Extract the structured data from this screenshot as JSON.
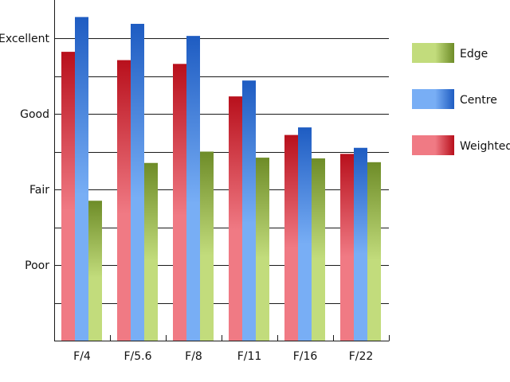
{
  "chart_data": {
    "type": "bar",
    "title": "",
    "xlabel": "",
    "ylabel": "",
    "categories": [
      "F/4",
      "F/5.6",
      "F/8",
      "F/11",
      "F/16",
      "F/22"
    ],
    "y_scale": {
      "min": 0,
      "max": 4,
      "ticks": [
        {
          "value": 1,
          "label": "Poor"
        },
        {
          "value": 2,
          "label": "Fair"
        },
        {
          "value": 3,
          "label": "Good"
        },
        {
          "value": 4,
          "label": "Excellent"
        }
      ],
      "minor_step": 0.5
    },
    "grid": true,
    "legend_position": "right",
    "series": [
      {
        "name": "Weighted",
        "color_light": "#f07a84",
        "color_dark": "#b8101c",
        "values": [
          3.82,
          3.71,
          3.66,
          3.23,
          2.72,
          2.47
        ]
      },
      {
        "name": "Centre",
        "color_light": "#78aef5",
        "color_dark": "#1e5cc2",
        "values": [
          4.28,
          4.19,
          4.03,
          3.44,
          2.82,
          2.55
        ]
      },
      {
        "name": "Edge",
        "color_light": "#c2dc7c",
        "color_dark": "#6e8c28",
        "values": [
          1.85,
          2.35,
          2.5,
          2.42,
          2.41,
          2.36
        ]
      }
    ],
    "legend_order": [
      "Edge",
      "Centre",
      "Weighted"
    ]
  }
}
